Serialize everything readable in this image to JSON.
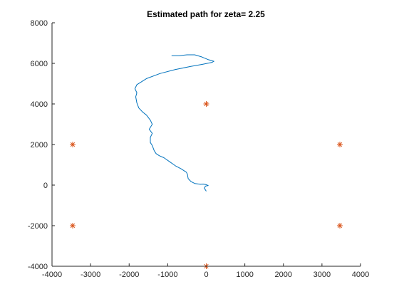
{
  "chart_data": {
    "type": "scatter",
    "title": "Estimated path for zeta= 2.25",
    "xlabel": "",
    "ylabel": "",
    "xlim": [
      -4000,
      4000
    ],
    "ylim": [
      -4000,
      8000
    ],
    "xticks": [
      -4000,
      -3000,
      -2000,
      -1000,
      0,
      1000,
      2000,
      3000,
      4000
    ],
    "yticks": [
      -4000,
      -2000,
      0,
      2000,
      4000,
      6000,
      8000
    ],
    "grid": false,
    "path": {
      "color": "#0072BD",
      "points": [
        [
          0,
          -300
        ],
        [
          -50,
          -150
        ],
        [
          -20,
          -50
        ],
        [
          50,
          -20
        ],
        [
          0,
          20
        ],
        [
          -80,
          50
        ],
        [
          -150,
          40
        ],
        [
          -300,
          80
        ],
        [
          -400,
          180
        ],
        [
          -470,
          320
        ],
        [
          -490,
          540
        ],
        [
          -520,
          640
        ],
        [
          -650,
          800
        ],
        [
          -800,
          950
        ],
        [
          -950,
          1150
        ],
        [
          -1100,
          1350
        ],
        [
          -1220,
          1450
        ],
        [
          -1300,
          1550
        ],
        [
          -1350,
          1700
        ],
        [
          -1400,
          1950
        ],
        [
          -1450,
          2100
        ],
        [
          -1450,
          2350
        ],
        [
          -1400,
          2550
        ],
        [
          -1480,
          2750
        ],
        [
          -1400,
          3000
        ],
        [
          -1450,
          3200
        ],
        [
          -1550,
          3450
        ],
        [
          -1650,
          3600
        ],
        [
          -1750,
          3800
        ],
        [
          -1800,
          4050
        ],
        [
          -1830,
          4350
        ],
        [
          -1800,
          4550
        ],
        [
          -1850,
          4750
        ],
        [
          -1800,
          4950
        ],
        [
          -1550,
          5250
        ],
        [
          -1200,
          5500
        ],
        [
          -800,
          5700
        ],
        [
          -400,
          5850
        ],
        [
          -100,
          5950
        ],
        [
          150,
          6050
        ],
        [
          200,
          6100
        ],
        [
          60,
          6180
        ],
        [
          -120,
          6320
        ],
        [
          -300,
          6420
        ],
        [
          -500,
          6420
        ],
        [
          -700,
          6380
        ],
        [
          -900,
          6380
        ]
      ]
    },
    "markers": {
      "symbol": "*",
      "color": "#D95319",
      "points": [
        [
          0,
          4000
        ],
        [
          3464,
          2000
        ],
        [
          3464,
          -2000
        ],
        [
          0,
          -4000
        ],
        [
          -3464,
          -2000
        ],
        [
          -3464,
          2000
        ]
      ]
    }
  }
}
